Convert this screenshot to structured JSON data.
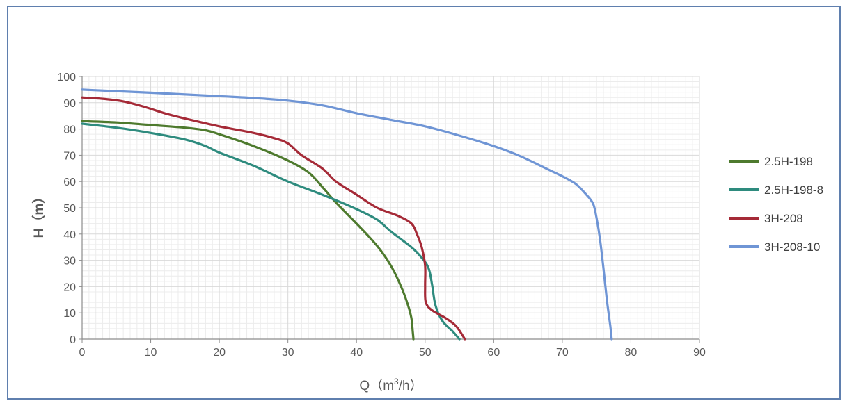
{
  "chart_data": {
    "type": "line",
    "title": "",
    "xlabel": "Q（m³/h）",
    "xlabel_parts": {
      "prefix": "Q（m",
      "sup": "3",
      "suffix": "/h）"
    },
    "ylabel": "H（m）",
    "xlim": [
      0,
      90
    ],
    "ylim": [
      0,
      100
    ],
    "xticks": [
      0,
      10,
      20,
      30,
      40,
      50,
      60,
      70,
      80,
      90
    ],
    "yticks": [
      0,
      10,
      20,
      30,
      40,
      50,
      60,
      70,
      80,
      90,
      100
    ],
    "grid": true,
    "legend_position": "right",
    "series": [
      {
        "name": "2.5H-198",
        "color": "#4e7a2e",
        "points": [
          [
            0,
            83
          ],
          [
            5,
            82.5
          ],
          [
            10,
            81.5
          ],
          [
            15,
            80.5
          ],
          [
            18,
            79.5
          ],
          [
            20,
            78
          ],
          [
            25,
            73.5
          ],
          [
            30,
            68
          ],
          [
            33,
            63.5
          ],
          [
            35,
            58
          ],
          [
            37,
            52
          ],
          [
            40,
            44
          ],
          [
            43,
            35.5
          ],
          [
            45,
            28
          ],
          [
            46.5,
            20
          ],
          [
            47.5,
            13
          ],
          [
            48,
            8
          ],
          [
            48.2,
            3
          ],
          [
            48.3,
            0
          ]
        ]
      },
      {
        "name": "2.5H-198-8",
        "color": "#2e8b7e",
        "points": [
          [
            0,
            82
          ],
          [
            5,
            80.5
          ],
          [
            10,
            78.5
          ],
          [
            15,
            76
          ],
          [
            18,
            73.5
          ],
          [
            20,
            71
          ],
          [
            25,
            66
          ],
          [
            30,
            60
          ],
          [
            35,
            55
          ],
          [
            40,
            49.5
          ],
          [
            43,
            45.5
          ],
          [
            45,
            41
          ],
          [
            48,
            35
          ],
          [
            49.5,
            31
          ],
          [
            50.5,
            27
          ],
          [
            51,
            21
          ],
          [
            51.5,
            13
          ],
          [
            52.5,
            7
          ],
          [
            54,
            3
          ],
          [
            55,
            0
          ]
        ]
      },
      {
        "name": "3H-208",
        "color": "#a52a37",
        "points": [
          [
            0,
            92
          ],
          [
            3,
            91.5
          ],
          [
            6,
            90.5
          ],
          [
            9,
            88.5
          ],
          [
            12,
            86
          ],
          [
            15,
            84
          ],
          [
            20,
            81
          ],
          [
            25,
            78.5
          ],
          [
            28,
            76.5
          ],
          [
            30,
            74.5
          ],
          [
            32,
            70
          ],
          [
            35,
            65
          ],
          [
            37,
            60
          ],
          [
            40,
            55
          ],
          [
            43,
            50
          ],
          [
            46,
            47
          ],
          [
            48,
            44
          ],
          [
            48.8,
            40
          ],
          [
            49.5,
            35
          ],
          [
            50,
            28
          ],
          [
            50,
            20
          ],
          [
            50.1,
            14
          ],
          [
            51,
            11
          ],
          [
            53,
            8
          ],
          [
            54.5,
            5
          ],
          [
            55.8,
            0
          ]
        ]
      },
      {
        "name": "3H-208-10",
        "color": "#6f95d5",
        "points": [
          [
            0,
            95
          ],
          [
            10,
            93.8
          ],
          [
            20,
            92.5
          ],
          [
            25,
            91.8
          ],
          [
            30,
            90.8
          ],
          [
            35,
            89
          ],
          [
            40,
            86
          ],
          [
            45,
            83.5
          ],
          [
            50,
            81
          ],
          [
            55,
            77.5
          ],
          [
            60,
            73.5
          ],
          [
            64,
            69.5
          ],
          [
            68,
            64.5
          ],
          [
            70,
            62
          ],
          [
            72,
            59
          ],
          [
            73.5,
            55
          ],
          [
            74.5,
            51.5
          ],
          [
            75,
            46
          ],
          [
            75.5,
            38
          ],
          [
            76,
            27
          ],
          [
            76.5,
            15
          ],
          [
            77,
            5
          ],
          [
            77.2,
            0
          ]
        ]
      }
    ]
  }
}
